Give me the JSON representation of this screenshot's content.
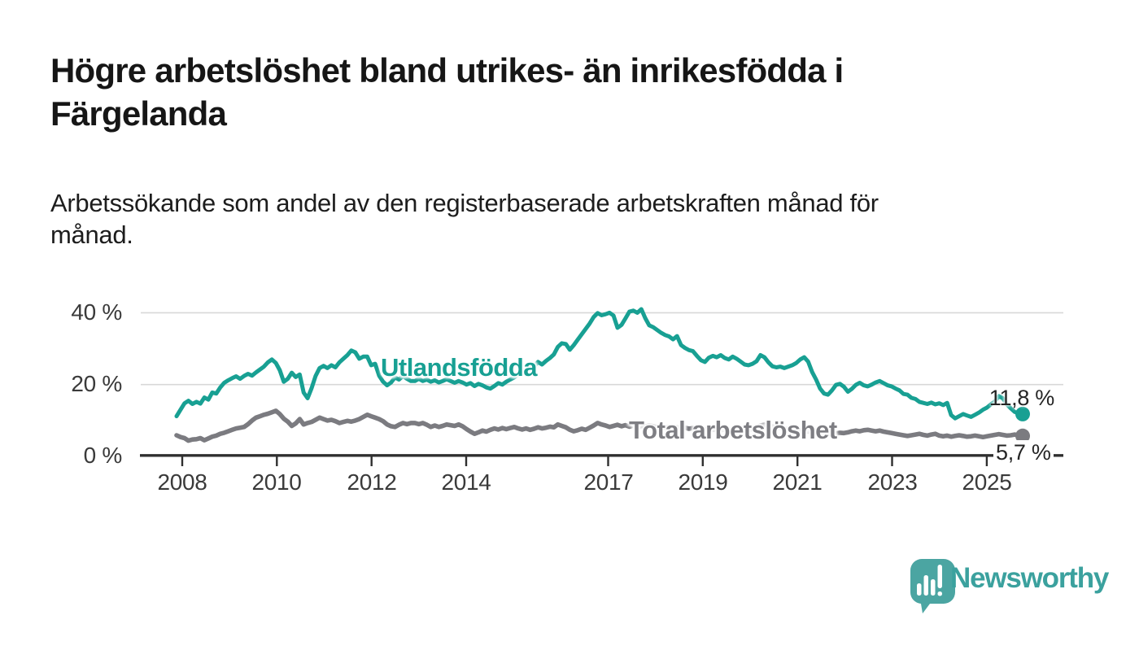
{
  "header": {
    "title_lines": [
      "Högre arbetslöshet bland utrikes- än inrikesfödda i",
      "Färgelanda"
    ],
    "subtitle_lines": [
      "Arbetssökande som andel av den registerbaserade arbetskraften månad för",
      "månad."
    ]
  },
  "chart_data": {
    "type": "line",
    "title": "Högre arbetslöshet bland utrikes- än inrikesfödda i Färgelanda",
    "subtitle": "Arbetssökande som andel av den registerbaserade arbetskraften månad för månad.",
    "unit": "%",
    "x_start": "2008-01",
    "x_end": "2025-10",
    "x_tick_labels": [
      "2008",
      "2010",
      "2012",
      "2014",
      "2017",
      "2019",
      "2021",
      "2023",
      "2025"
    ],
    "y_tick_labels": [
      "40 %",
      "20 %",
      "0 %"
    ],
    "ylim": [
      0,
      45
    ],
    "grid": "horizontal",
    "series": [
      {
        "name": "Utlandsfödda",
        "color": "#18a093",
        "end_label": "11,8 %",
        "end_value": 11.8,
        "values": [
          11.2,
          13.0,
          14.8,
          15.5,
          14.6,
          15.2,
          14.7,
          16.4,
          15.8,
          17.8,
          17.5,
          19.2,
          20.5,
          21.2,
          21.8,
          22.3,
          21.6,
          22.4,
          23.0,
          22.5,
          23.4,
          24.2,
          25.0,
          26.2,
          27.0,
          26.0,
          24.0,
          20.8,
          21.6,
          23.3,
          22.1,
          22.8,
          17.8,
          16.2,
          19.0,
          22.4,
          24.6,
          25.2,
          24.6,
          25.4,
          24.8,
          26.2,
          27.2,
          28.2,
          29.5,
          29.0,
          27.2,
          27.8,
          27.8,
          25.4,
          25.8,
          22.5,
          20.8,
          19.8,
          20.6,
          22.0,
          21.4,
          22.4,
          21.6,
          21.0,
          21.0,
          21.6,
          21.0,
          21.4,
          20.8,
          21.2,
          20.6,
          21.0,
          21.5,
          21.0,
          20.5,
          21.0,
          20.6,
          20.0,
          20.4,
          19.6,
          20.2,
          19.8,
          19.2,
          18.9,
          19.6,
          20.4,
          20.0,
          20.8,
          21.4,
          22.0,
          22.8,
          23.4,
          22.8,
          24.0,
          25.0,
          26.3,
          25.6,
          26.6,
          27.4,
          28.4,
          30.5,
          31.5,
          31.3,
          29.7,
          31.0,
          32.5,
          34.0,
          35.5,
          37.0,
          38.8,
          39.9,
          39.3,
          39.6,
          40.0,
          39.2,
          35.8,
          36.6,
          38.4,
          40.3,
          40.6,
          40.0,
          41.0,
          38.5,
          36.5,
          36.0,
          35.2,
          34.4,
          33.8,
          33.4,
          32.6,
          33.5,
          31.0,
          30.2,
          29.6,
          29.3,
          28.0,
          26.8,
          26.3,
          27.5,
          28.0,
          27.6,
          28.2,
          27.4,
          27.0,
          27.8,
          27.2,
          26.4,
          25.6,
          25.4,
          25.8,
          26.5,
          28.2,
          27.6,
          26.2,
          25.1,
          24.8,
          25.0,
          24.6,
          25.0,
          25.4,
          26.0,
          27.0,
          27.6,
          26.4,
          23.5,
          21.4,
          18.9,
          17.5,
          17.2,
          18.4,
          19.9,
          20.2,
          19.4,
          18.0,
          18.8,
          19.9,
          20.5,
          19.8,
          19.5,
          20.0,
          20.6,
          21.0,
          20.4,
          19.8,
          19.5,
          18.9,
          18.4,
          17.4,
          17.2,
          16.3,
          16.0,
          15.2,
          14.9,
          14.6,
          15.0,
          14.5,
          14.8,
          14.3,
          14.9,
          11.5,
          10.6,
          11.2,
          11.8,
          11.4,
          11.0,
          11.6,
          12.2,
          13.0,
          13.6,
          14.5,
          15.3,
          16.8,
          16.2,
          14.5,
          13.4,
          12.4,
          12.0,
          11.8
        ]
      },
      {
        "name": "Total arbetslöshet",
        "color": "#7b7b80",
        "end_label": "5,7 %",
        "end_value": 5.7,
        "values": [
          5.9,
          5.4,
          5.1,
          4.4,
          4.7,
          4.8,
          5.1,
          4.5,
          5.0,
          5.5,
          5.8,
          6.3,
          6.6,
          7.0,
          7.4,
          7.8,
          8.0,
          8.2,
          9.0,
          10.0,
          10.8,
          11.2,
          11.6,
          11.9,
          12.3,
          12.7,
          11.8,
          10.5,
          9.7,
          8.5,
          9.2,
          10.4,
          8.9,
          9.3,
          9.6,
          10.2,
          10.8,
          10.4,
          10.0,
          10.2,
          9.8,
          9.3,
          9.6,
          9.9,
          9.7,
          10.0,
          10.4,
          11.0,
          11.6,
          11.2,
          10.8,
          10.4,
          9.8,
          8.9,
          8.4,
          8.2,
          8.8,
          9.3,
          9.0,
          9.3,
          9.3,
          9.0,
          9.3,
          8.8,
          8.2,
          8.6,
          8.2,
          8.5,
          8.9,
          8.7,
          8.5,
          8.9,
          8.4,
          7.6,
          6.9,
          6.3,
          6.7,
          7.2,
          6.9,
          7.4,
          7.8,
          7.5,
          7.9,
          7.6,
          7.9,
          8.2,
          7.8,
          7.5,
          7.8,
          7.4,
          7.7,
          8.1,
          7.8,
          8.0,
          8.3,
          8.1,
          8.9,
          8.5,
          8.1,
          7.4,
          7.0,
          7.3,
          7.7,
          7.4,
          8.0,
          8.6,
          9.3,
          8.9,
          8.6,
          8.2,
          8.5,
          8.8,
          8.4,
          8.7,
          8.3,
          8.6,
          8.2,
          8.5,
          8.3,
          8.6,
          8.4,
          8.1,
          8.3,
          8.0,
          8.2,
          7.9,
          8.1,
          7.8,
          8.0,
          7.7,
          7.9,
          7.6,
          7.8,
          7.5,
          7.7,
          7.4,
          7.6,
          7.3,
          7.5,
          7.2,
          7.4,
          7.1,
          7.3,
          7.5,
          7.4,
          7.6,
          8.0,
          8.6,
          8.8,
          8.5,
          8.3,
          8.1,
          7.9,
          7.7,
          7.6,
          7.4,
          7.3,
          7.2,
          7.0,
          6.9,
          6.8,
          6.6,
          6.5,
          6.4,
          6.3,
          6.2,
          6.4,
          6.6,
          6.5,
          6.7,
          7.0,
          7.2,
          7.0,
          7.3,
          7.4,
          7.2,
          7.0,
          7.2,
          6.9,
          6.7,
          6.5,
          6.3,
          6.1,
          5.9,
          5.7,
          5.9,
          6.1,
          6.3,
          6.0,
          5.8,
          6.1,
          6.3,
          5.8,
          5.6,
          5.8,
          5.5,
          5.7,
          5.9,
          5.7,
          5.5,
          5.6,
          5.8,
          5.6,
          5.4,
          5.6,
          5.8,
          6.0,
          6.2,
          6.0,
          5.8,
          5.9,
          6.1,
          5.9,
          5.7
        ]
      }
    ]
  },
  "colors": {
    "accent_teal": "#18a093",
    "series_gray": "#7b7b80",
    "grid": "#d8d8d8",
    "axis": "#2f2f2f",
    "logo": "#4ba5a2",
    "logo_text": "#3ba19e"
  },
  "branding": {
    "logo_text": "Newsworthy"
  }
}
